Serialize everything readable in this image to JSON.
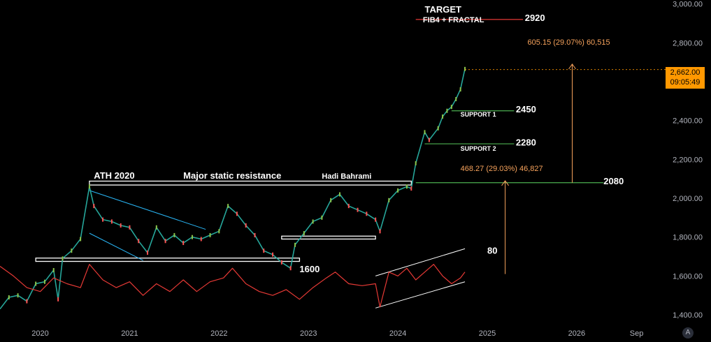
{
  "chart_data": {
    "type": "line",
    "title": "",
    "ylabel": "",
    "xlabel": "",
    "y_scale": "linear",
    "ylim": [
      1350,
      3020
    ],
    "xlim": [
      2019.55,
      2026.9
    ],
    "y_ticks": [
      {
        "value": 1400,
        "label": "1,400.00"
      },
      {
        "value": 1600,
        "label": "1,600.00"
      },
      {
        "value": 1800,
        "label": "1,800.00"
      },
      {
        "value": 2000,
        "label": "2,000.00"
      },
      {
        "value": 2200,
        "label": "2,200.00"
      },
      {
        "value": 2400,
        "label": "2,400.00"
      },
      {
        "value": 2600,
        "label": "2,600.00"
      },
      {
        "value": 2800,
        "label": "2,800.00"
      },
      {
        "value": 3000,
        "label": "3,000.00"
      }
    ],
    "x_ticks": [
      {
        "value": 2020.0,
        "label": "2020"
      },
      {
        "value": 2021.0,
        "label": "2021"
      },
      {
        "value": 2022.0,
        "label": "2022"
      },
      {
        "value": 2023.0,
        "label": "2023"
      },
      {
        "value": 2024.0,
        "label": "2024"
      },
      {
        "value": 2025.0,
        "label": "2025"
      },
      {
        "value": 2026.0,
        "label": "2026"
      },
      {
        "value": 2026.67,
        "label": "Sep"
      }
    ],
    "series": [
      {
        "role": "price",
        "color": "#26a69a",
        "x": [
          2019.55,
          2019.65,
          2019.75,
          2019.85,
          2019.95,
          2020.05,
          2020.15,
          2020.2,
          2020.25,
          2020.35,
          2020.45,
          2020.55,
          2020.6,
          2020.7,
          2020.8,
          2020.9,
          2021.0,
          2021.1,
          2021.2,
          2021.3,
          2021.4,
          2021.5,
          2021.6,
          2021.7,
          2021.8,
          2021.9,
          2022.0,
          2022.1,
          2022.2,
          2022.3,
          2022.4,
          2022.5,
          2022.6,
          2022.7,
          2022.8,
          2022.85,
          2022.95,
          2023.05,
          2023.15,
          2023.25,
          2023.35,
          2023.45,
          2023.55,
          2023.65,
          2023.75,
          2023.8,
          2023.9,
          2024.0,
          2024.1,
          2024.15,
          2024.2,
          2024.3,
          2024.35,
          2024.45,
          2024.5,
          2024.55,
          2024.6,
          2024.65,
          2024.7,
          2024.75
        ],
        "y": [
          1430,
          1490,
          1500,
          1470,
          1560,
          1570,
          1630,
          1480,
          1690,
          1730,
          1790,
          2060,
          1960,
          1890,
          1880,
          1860,
          1850,
          1780,
          1720,
          1850,
          1780,
          1810,
          1770,
          1800,
          1790,
          1810,
          1830,
          1960,
          1920,
          1860,
          1810,
          1730,
          1710,
          1670,
          1640,
          1760,
          1820,
          1880,
          1900,
          1990,
          2020,
          1960,
          1940,
          1920,
          1890,
          1830,
          1990,
          2040,
          2060,
          2050,
          2180,
          2340,
          2300,
          2360,
          2420,
          2450,
          2470,
          2510,
          2560,
          2665
        ]
      },
      {
        "role": "indicator",
        "color": "#e53935",
        "x": [
          2019.55,
          2019.7,
          2019.85,
          2020.0,
          2020.15,
          2020.3,
          2020.45,
          2020.55,
          2020.7,
          2020.85,
          2021.0,
          2021.15,
          2021.3,
          2021.45,
          2021.6,
          2021.75,
          2021.9,
          2022.05,
          2022.15,
          2022.3,
          2022.45,
          2022.6,
          2022.75,
          2022.9,
          2023.05,
          2023.2,
          2023.3,
          2023.45,
          2023.6,
          2023.75,
          2023.8,
          2023.9,
          2024.0,
          2024.1,
          2024.2,
          2024.3,
          2024.4,
          2024.5,
          2024.6,
          2024.7,
          2024.75
        ],
        "y": [
          1650,
          1600,
          1540,
          1520,
          1590,
          1560,
          1540,
          1660,
          1580,
          1540,
          1570,
          1500,
          1560,
          1520,
          1580,
          1520,
          1570,
          1590,
          1640,
          1560,
          1520,
          1500,
          1530,
          1480,
          1540,
          1590,
          1620,
          1560,
          1550,
          1560,
          1440,
          1620,
          1600,
          1640,
          1580,
          1620,
          1660,
          1600,
          1560,
          1590,
          1620
        ]
      }
    ],
    "horizontal_lines": [
      {
        "y": 2920,
        "x1": 2024.2,
        "x2": 2025.4,
        "color": "#e53935"
      },
      {
        "y": 2450,
        "x1": 2024.6,
        "x2": 2025.3,
        "color": "#4caf50"
      },
      {
        "y": 2280,
        "x1": 2024.3,
        "x2": 2025.3,
        "color": "#4caf50"
      },
      {
        "y": 2080,
        "x1": 2024.2,
        "x2": 2026.3,
        "color": "#4caf50"
      }
    ],
    "boxes": [
      {
        "x1": 2020.55,
        "x2": 2024.15,
        "y1": 2068,
        "y2": 2088,
        "color": "#ffffff",
        "label": "ATH 2020"
      },
      {
        "x1": 2019.95,
        "x2": 2022.9,
        "y1": 1675,
        "y2": 1692,
        "color": "#ffffff"
      },
      {
        "x1": 2022.7,
        "x2": 2023.75,
        "y1": 1790,
        "y2": 1805,
        "color": "#ffffff"
      }
    ],
    "trendlines": [
      {
        "x1": 2020.55,
        "y1": 2040,
        "x2": 2021.85,
        "y2": 1840,
        "color": "#29b6f6"
      },
      {
        "x1": 2020.55,
        "y1": 1820,
        "x2": 2021.15,
        "y2": 1680,
        "color": "#29b6f6"
      },
      {
        "x1": 2023.75,
        "y1": 1600,
        "x2": 2024.75,
        "y2": 1740,
        "color": "#ffffff"
      },
      {
        "x1": 2023.75,
        "y1": 1435,
        "x2": 2024.75,
        "y2": 1570,
        "color": "#ffffff"
      }
    ],
    "arrows": [
      {
        "x": 2025.2,
        "y_from": 1610,
        "y_to": 2090,
        "color": "#f7a35c"
      },
      {
        "x": 2025.95,
        "y_from": 2080,
        "y_to": 2690,
        "color": "#f7a35c"
      }
    ],
    "annotations": [
      {
        "text": "TARGET",
        "x": 2024.3,
        "y": 2955
      },
      {
        "text": "FIB4 + FRACTAL",
        "x": 2024.28,
        "y": 2905
      },
      {
        "text": "2920",
        "x": 2025.42,
        "y": 2912
      },
      {
        "text": "605.15 (29.07%) 60,515",
        "x": 2025.45,
        "y": 2790
      },
      {
        "text": "SUPPORT 1",
        "x": 2024.7,
        "y": 2420
      },
      {
        "text": "2450",
        "x": 2025.32,
        "y": 2442
      },
      {
        "text": "SUPPORT 2",
        "x": 2024.7,
        "y": 2245
      },
      {
        "text": "2280",
        "x": 2025.32,
        "y": 2272
      },
      {
        "text": "468.27 (29.03%) 46,827",
        "x": 2024.7,
        "y": 2140
      },
      {
        "text": "2080",
        "x": 2026.3,
        "y": 2072
      },
      {
        "text": "ATH 2020",
        "x": 2020.6,
        "y": 2100
      },
      {
        "text": "Major static resistance",
        "x": 2021.6,
        "y": 2100
      },
      {
        "text": "Hadi Bahrami",
        "x": 2023.15,
        "y": 2100
      },
      {
        "text": "1600",
        "x": 2022.9,
        "y": 1620
      },
      {
        "text": "80",
        "x": 2025.0,
        "y": 1715
      }
    ],
    "last_price": {
      "value": 2662.0,
      "label": "2,662.00",
      "countdown": "09:05:49"
    }
  },
  "ui": {
    "corner_badge": "A"
  }
}
